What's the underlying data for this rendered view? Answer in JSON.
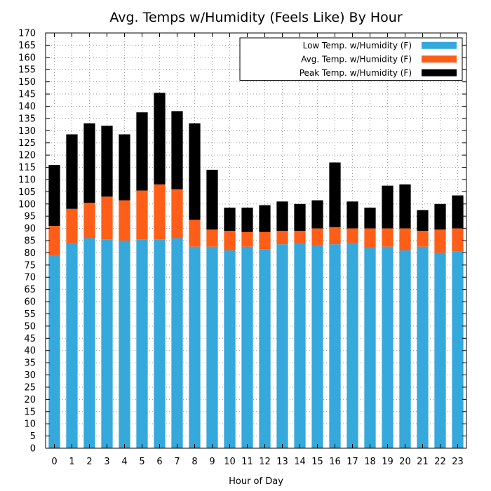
{
  "chart_data": {
    "type": "bar",
    "stacked": true,
    "title": "Avg. Temps w/Humidity (Feels Like) By Hour",
    "xlabel": "Hour of Day",
    "ylabel": "",
    "ylim": [
      0,
      170
    ],
    "ytick_step": 5,
    "grid": true,
    "legend_position": "top-right",
    "categories": [
      "0",
      "1",
      "2",
      "3",
      "4",
      "5",
      "6",
      "7",
      "8",
      "9",
      "10",
      "11",
      "12",
      "13",
      "14",
      "15",
      "16",
      "17",
      "18",
      "19",
      "20",
      "21",
      "22",
      "23"
    ],
    "series": [
      {
        "name": "Low Temp. w/Humidity (F)",
        "color": "#35A8DC",
        "values": [
          79,
          84,
          86,
          85.5,
          85,
          85.5,
          85.5,
          86,
          82.5,
          82.5,
          81,
          82.5,
          81.5,
          83.5,
          84,
          83,
          83.5,
          84,
          82,
          82.5,
          81,
          82.5,
          80,
          80.5
        ]
      },
      {
        "name": "Avg. Temp. w/Humidity (F)",
        "color": "#FF5E18",
        "values": [
          12,
          14,
          14.5,
          17.5,
          16.5,
          20,
          22.5,
          20,
          11,
          7,
          8,
          6,
          7,
          5.5,
          5,
          7,
          7,
          6,
          8,
          7.5,
          9,
          6.5,
          9.5,
          9.5
        ]
      },
      {
        "name": "Peak Temp. w/Humidity (F)",
        "color": "#000000",
        "values": [
          25,
          30.5,
          32.5,
          29,
          27,
          32,
          37.5,
          32,
          39.5,
          24.5,
          9.5,
          10,
          11,
          12,
          11,
          11.5,
          26.5,
          11,
          8.5,
          17.5,
          18,
          8.5,
          10.5,
          13.5
        ]
      }
    ]
  }
}
